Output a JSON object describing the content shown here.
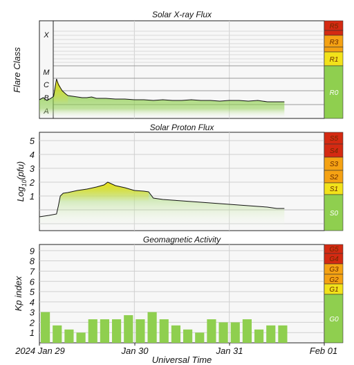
{
  "colors": {
    "panel_bg": "#f7f7f7",
    "grid": "#cfcfcf",
    "frame": "#222222",
    "green": "#8fcf4f",
    "yellow": "#f2e21a",
    "orange": "#f5a213",
    "red": "#d42a12",
    "line": "#111111",
    "scale_text": "#6a2a00"
  },
  "x_axis": {
    "label": "Universal Time",
    "ticks": [
      "2024 Jan 29",
      "Jan 30",
      "Jan 31",
      "Feb 01"
    ],
    "range_days": [
      0,
      3
    ]
  },
  "chart_data": [
    {
      "type": "area",
      "title": "Solar X-ray Flux",
      "ylabel": "Flare Class",
      "y_categories": [
        "A",
        "B",
        "C",
        "M",
        "X"
      ],
      "scale_labels": [
        "R5",
        "R3",
        "R1",
        "R0"
      ],
      "data_end_day": 2.58,
      "series": [
        {
          "x": [
            0,
            0.04,
            0.08,
            0.12,
            0.15,
            0.18,
            0.2,
            0.24,
            0.28,
            0.3,
            0.35,
            0.4,
            0.45,
            0.5,
            0.55,
            0.6,
            0.7,
            0.8,
            0.9,
            1.0,
            1.1,
            1.2,
            1.3,
            1.4,
            1.5,
            1.6,
            1.7,
            1.8,
            1.9,
            2.0,
            2.1,
            2.2,
            2.3,
            2.4,
            2.5,
            2.58
          ],
          "y": [
            1.35,
            1.5,
            1.3,
            1.45,
            1.6,
            2.95,
            2.5,
            2.0,
            1.75,
            1.65,
            1.6,
            1.55,
            1.5,
            1.5,
            1.55,
            1.45,
            1.45,
            1.4,
            1.4,
            1.35,
            1.35,
            1.3,
            1.35,
            1.3,
            1.3,
            1.35,
            1.3,
            1.3,
            1.25,
            1.3,
            1.3,
            1.25,
            1.3,
            1.2,
            1.2,
            1.2
          ]
        }
      ]
    },
    {
      "type": "area",
      "title": "Solar Proton Flux",
      "ylabel": "Log10(pfu)",
      "yticks": [
        1,
        2,
        3,
        4,
        5
      ],
      "ylim": [
        -1.5,
        5.6
      ],
      "scale_labels": [
        "S5",
        "S4",
        "S3",
        "S2",
        "S1",
        "S0"
      ],
      "data_end_day": 2.58,
      "series": [
        {
          "x": [
            0,
            0.1,
            0.18,
            0.2,
            0.22,
            0.25,
            0.3,
            0.4,
            0.5,
            0.6,
            0.68,
            0.72,
            0.8,
            0.9,
            1.0,
            1.1,
            1.15,
            1.2,
            1.3,
            1.4,
            1.5,
            1.6,
            1.7,
            1.8,
            1.9,
            2.0,
            2.1,
            2.2,
            2.3,
            2.4,
            2.5,
            2.58
          ],
          "y": [
            -0.5,
            -0.4,
            -0.3,
            0.3,
            1.0,
            1.2,
            1.25,
            1.4,
            1.5,
            1.65,
            1.8,
            2.0,
            1.75,
            1.6,
            1.4,
            1.35,
            1.3,
            0.85,
            0.75,
            0.7,
            0.65,
            0.6,
            0.55,
            0.5,
            0.45,
            0.4,
            0.35,
            0.3,
            0.25,
            0.2,
            0.1,
            0.1
          ]
        }
      ]
    },
    {
      "type": "bar",
      "title": "Geomagnetic Activity",
      "ylabel": "Kp index",
      "yticks": [
        1,
        2,
        3,
        4,
        5,
        6,
        7,
        8,
        9
      ],
      "ylim": [
        0,
        9.6
      ],
      "scale_labels": [
        "G5",
        "G4",
        "G3",
        "G2",
        "G1",
        "G0"
      ],
      "bar_width_days": 0.125,
      "values": [
        3.0,
        1.7,
        1.3,
        1.0,
        2.3,
        2.3,
        2.3,
        2.7,
        2.3,
        3.0,
        2.3,
        1.7,
        1.3,
        1.0,
        2.3,
        2.0,
        2.0,
        2.3,
        1.3,
        1.7,
        1.7
      ]
    }
  ]
}
